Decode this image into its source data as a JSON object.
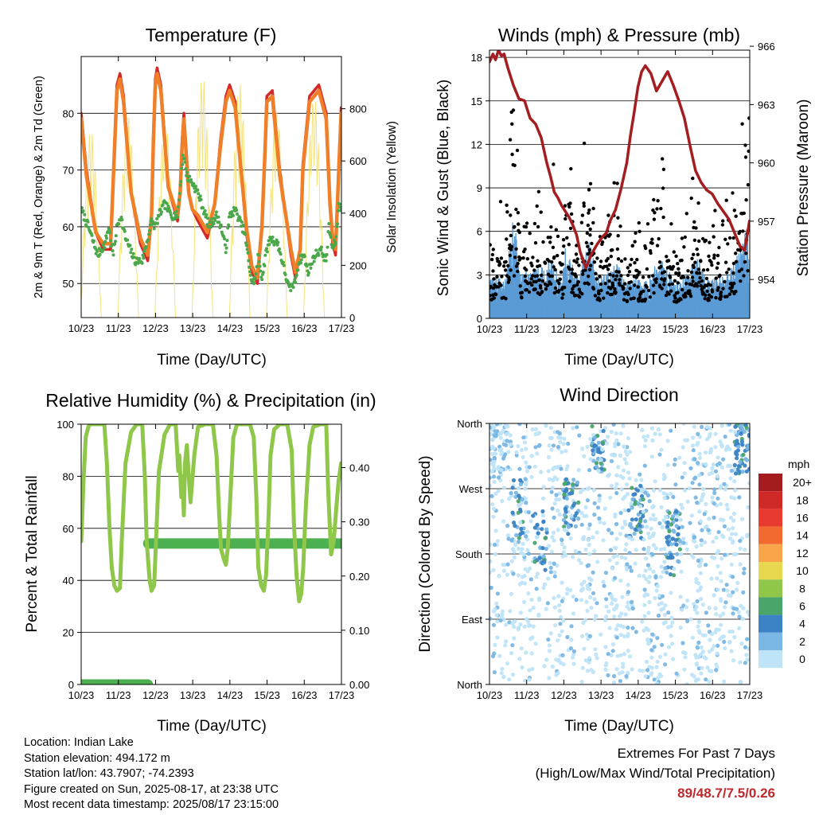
{
  "colors": {
    "temp_2m": "#d62828",
    "temp_9m": "#f07f2a",
    "dewpoint": "#4aa84a",
    "solar": "#f5e27a",
    "wind_sonic": "#5a9bd5",
    "gust": "#000000",
    "pressure": "#a31d21",
    "rh": "#8fc74a",
    "precip": "#4caf50"
  },
  "info": {
    "location": "Location: Indian Lake",
    "elevation": "Station elevation: 494.172 m",
    "latlon": "Station lat/lon: 43.7907; -74.2393",
    "created": "Figure created on Sun, 2025-08-17, at 23:38 UTC",
    "latest": "Most recent data timestamp: 2025/08/17 23:15:00"
  },
  "extremes": {
    "title": "Extremes For Past 7 Days",
    "subtitle": "(High/Low/Max Wind/Total Precipitation)",
    "values": "89/48.7/7.5/0.26"
  },
  "chart_data": [
    {
      "type": "line",
      "title": "Temperature (F)",
      "xlabel": "Time (Day/UTC)",
      "ylabel": "2m & 9m T (Red, Orange) & 2m Td (Green)",
      "y2label": "Solar Insolation (Yellow)",
      "x_ticks": [
        "10/23",
        "11/23",
        "12/23",
        "13/23",
        "14/23",
        "15/23",
        "16/23",
        "17/23"
      ],
      "xlim": [
        10.958,
        17.958
      ],
      "ylim": [
        44,
        90
      ],
      "y_ticks": [
        "50",
        "60",
        "70",
        "80"
      ],
      "y2lim": [
        0,
        1000
      ],
      "y2_ticks": [
        "0",
        "200",
        "400",
        "600",
        "800"
      ],
      "grid": true,
      "series": [
        {
          "key": "t2m",
          "x": [
            10.96,
            11.1,
            11.35,
            11.55,
            11.75,
            11.85,
            11.92,
            12.0,
            12.1,
            12.3,
            12.55,
            12.75,
            12.85,
            12.9,
            12.95,
            13.0,
            13.1,
            13.3,
            13.55,
            13.62,
            13.67,
            13.72,
            13.78,
            13.85,
            13.95,
            14.1,
            14.35,
            14.55,
            14.7,
            14.85,
            14.95,
            15.1,
            15.4,
            15.55,
            15.7,
            15.82,
            15.9,
            15.95,
            16.1,
            16.3,
            16.6,
            16.72,
            16.85,
            16.92,
            17.1,
            17.35,
            17.55,
            17.65,
            17.72,
            17.8,
            17.88,
            17.95
          ],
          "y": [
            80,
            70,
            59,
            56,
            56,
            74,
            85,
            87,
            83,
            66,
            57,
            54,
            62,
            76,
            86,
            88,
            85,
            67,
            61,
            66,
            75,
            80,
            74,
            66,
            63,
            61,
            58,
            64,
            75,
            83,
            85,
            82,
            59,
            52,
            50,
            60,
            74,
            83,
            84,
            70,
            55,
            51,
            56,
            71,
            83,
            85,
            80,
            64,
            57,
            55,
            70,
            81
          ]
        },
        {
          "key": "t9m",
          "x": [
            10.96,
            11.1,
            11.35,
            11.55,
            11.75,
            11.85,
            11.92,
            12.0,
            12.1,
            12.3,
            12.55,
            12.75,
            12.85,
            12.9,
            12.95,
            13.0,
            13.1,
            13.3,
            13.55,
            13.62,
            13.67,
            13.72,
            13.78,
            13.85,
            13.95,
            14.1,
            14.35,
            14.55,
            14.7,
            14.85,
            14.95,
            15.1,
            15.4,
            15.55,
            15.7,
            15.82,
            15.9,
            15.95,
            16.1,
            16.3,
            16.6,
            16.72,
            16.85,
            16.92,
            17.1,
            17.35,
            17.55,
            17.65,
            17.72,
            17.8,
            17.88,
            17.95
          ],
          "y": [
            79,
            69,
            59,
            57,
            57,
            73,
            84,
            86,
            82,
            66,
            58,
            55,
            62,
            75,
            85,
            87,
            84,
            67,
            62,
            66,
            74,
            79,
            73,
            66,
            63,
            62,
            59,
            64,
            74,
            82,
            84,
            81,
            60,
            53,
            51,
            60,
            73,
            82,
            83,
            69,
            56,
            52,
            56,
            70,
            82,
            84,
            79,
            64,
            58,
            56,
            69,
            80
          ]
        },
        {
          "key": "td",
          "x": [
            10.96,
            11.15,
            11.4,
            11.6,
            11.7,
            11.82,
            11.92,
            12.02,
            12.15,
            12.4,
            12.6,
            12.75,
            12.85,
            12.95,
            13.05,
            13.2,
            13.4,
            13.55,
            13.62,
            13.7,
            13.8,
            13.92,
            14.1,
            14.4,
            14.6,
            14.72,
            14.85,
            14.95,
            15.1,
            15.35,
            15.55,
            15.65,
            15.72,
            15.82,
            15.95,
            16.05,
            16.25,
            16.55,
            16.7,
            16.82,
            16.95,
            17.05,
            17.25,
            17.4,
            17.55,
            17.62,
            17.72,
            17.82,
            17.9,
            17.95
          ],
          "y": [
            63,
            60,
            55,
            57,
            60,
            55,
            60,
            62,
            58,
            54,
            54,
            58,
            61,
            60,
            62,
            64,
            62,
            62,
            67,
            73,
            69,
            68,
            66,
            60,
            62,
            60,
            56,
            62,
            63,
            59,
            50,
            51,
            55,
            51,
            56,
            58,
            57,
            49,
            50,
            54,
            55,
            52,
            55,
            56,
            54,
            60,
            56,
            58,
            65,
            62
          ]
        },
        {
          "key": "solar",
          "axis": "y2",
          "days": [
            11,
            12,
            13,
            14,
            15,
            16,
            17
          ],
          "peaks": [
            720,
            780,
            760,
            930,
            900,
            800,
            860
          ]
        }
      ]
    },
    {
      "type": "scatter",
      "title": "Winds (mph) & Pressure (mb)",
      "xlabel": "Time (Day/UTC)",
      "ylabel": "Sonic Wind & Gust (Blue, Black)",
      "y2label": "Station Pressure (Maroon)",
      "x_ticks": [
        "10/23",
        "11/23",
        "12/23",
        "13/23",
        "14/23",
        "15/23",
        "16/23",
        "17/23"
      ],
      "xlim": [
        10.958,
        17.958
      ],
      "ylim": [
        0,
        18.5
      ],
      "y_ticks": [
        "0",
        "3",
        "6",
        "9",
        "12",
        "15",
        "18"
      ],
      "y2lim": [
        952.0,
        965.8
      ],
      "y2_ticks": [
        "954",
        "957",
        "960",
        "963",
        "966"
      ],
      "grid": true,
      "series": [
        {
          "key": "pressure",
          "axis": "y2",
          "x": [
            10.96,
            11.05,
            11.12,
            11.2,
            11.28,
            11.35,
            11.45,
            11.6,
            11.75,
            11.9,
            12.05,
            12.2,
            12.35,
            12.5,
            12.6,
            12.7,
            12.8,
            12.9,
            13.0,
            13.1,
            13.2,
            13.3,
            13.4,
            13.55,
            13.7,
            13.85,
            14.0,
            14.1,
            14.2,
            14.35,
            14.5,
            14.65,
            14.75,
            14.85,
            14.95,
            15.05,
            15.15,
            15.3,
            15.45,
            15.6,
            15.75,
            15.9,
            16.05,
            16.2,
            16.35,
            16.5,
            16.65,
            16.8,
            16.95,
            17.1,
            17.25,
            17.4,
            17.55,
            17.7,
            17.82,
            17.9,
            17.95
          ],
          "y": [
            965.2,
            965.6,
            965.3,
            965.8,
            965.5,
            965.6,
            964.9,
            964.0,
            963.3,
            963.2,
            962.3,
            962.0,
            961.3,
            960.0,
            959.3,
            958.5,
            958.2,
            957.8,
            957.5,
            957.2,
            956.8,
            956.3,
            955.4,
            954.6,
            955.3,
            955.8,
            956.2,
            956.4,
            957.0,
            957.6,
            958.7,
            960.0,
            961.4,
            962.6,
            963.9,
            964.7,
            965.0,
            964.6,
            963.7,
            964.2,
            964.7,
            964.0,
            963.2,
            962.3,
            960.9,
            959.6,
            959.0,
            958.6,
            958.4,
            957.9,
            957.5,
            957.1,
            956.4,
            955.7,
            955.5,
            956.4,
            957.0
          ]
        }
      ],
      "wind_activity": [
        [
          11.4,
          1.0
        ],
        [
          11.6,
          2.6
        ],
        [
          11.8,
          1.1
        ],
        [
          12.4,
          1.3
        ],
        [
          12.65,
          1.6
        ],
        [
          12.9,
          0.8
        ],
        [
          13.0,
          1.8
        ],
        [
          13.35,
          1.0
        ],
        [
          13.65,
          2.0
        ],
        [
          13.85,
          1.0
        ],
        [
          14.1,
          1.1
        ],
        [
          14.4,
          1.4
        ],
        [
          14.65,
          0.9
        ],
        [
          14.9,
          1.0
        ],
        [
          15.25,
          0.9
        ],
        [
          15.45,
          1.5
        ],
        [
          15.65,
          1.4
        ],
        [
          15.95,
          0.9
        ],
        [
          16.35,
          1.2
        ],
        [
          16.55,
          1.6
        ],
        [
          16.8,
          1.0
        ],
        [
          17.1,
          1.0
        ],
        [
          17.5,
          1.3
        ],
        [
          17.85,
          2.2
        ]
      ]
    },
    {
      "type": "line",
      "title": "Relative Humidity (%) & Precipitation (in)",
      "xlabel": "Time (Day/UTC)",
      "ylabel": "Percent & Total Rainfall",
      "x_ticks": [
        "10/23",
        "11/23",
        "12/23",
        "13/23",
        "14/23",
        "15/23",
        "16/23",
        "17/23"
      ],
      "xlim": [
        10.958,
        17.958
      ],
      "ylim": [
        0,
        100
      ],
      "y_ticks": [
        "0",
        "20",
        "40",
        "60",
        "80",
        "100"
      ],
      "y2lim": [
        0,
        0.48
      ],
      "y2_ticks": [
        "0.00",
        "0.10",
        "0.20",
        "0.30",
        "0.40"
      ],
      "grid": true,
      "series": [
        {
          "key": "rh",
          "x": [
            10.96,
            11.02,
            11.08,
            11.15,
            11.2,
            11.3,
            11.45,
            11.58,
            11.65,
            11.72,
            11.78,
            11.85,
            11.92,
            12.0,
            12.05,
            12.15,
            12.3,
            12.45,
            12.6,
            12.67,
            12.72,
            12.8,
            12.85,
            12.92,
            12.97,
            13.05,
            13.2,
            13.35,
            13.5,
            13.57,
            13.6,
            13.65,
            13.68,
            13.72,
            13.75,
            13.8,
            13.85,
            13.9,
            14.0,
            14.1,
            14.3,
            14.5,
            14.6,
            14.67,
            14.72,
            14.8,
            14.85,
            14.9,
            14.97,
            15.05,
            15.15,
            15.3,
            15.5,
            15.6,
            15.67,
            15.72,
            15.8,
            15.87,
            15.93,
            16.0,
            16.05,
            16.15,
            16.3,
            16.5,
            16.62,
            16.68,
            16.75,
            16.82,
            16.88,
            16.93,
            17.0,
            17.1,
            17.2,
            17.4,
            17.55,
            17.6,
            17.68,
            17.75,
            17.82,
            17.88,
            17.95
          ],
          "y": [
            55,
            78,
            95,
            99,
            100,
            100,
            100,
            100,
            85,
            60,
            45,
            38,
            36,
            37,
            55,
            85,
            97,
            100,
            100,
            80,
            55,
            40,
            36,
            38,
            55,
            82,
            96,
            100,
            100,
            82,
            88,
            72,
            80,
            65,
            85,
            92,
            80,
            70,
            88,
            99,
            100,
            100,
            88,
            65,
            52,
            48,
            46,
            52,
            72,
            95,
            100,
            100,
            100,
            95,
            72,
            45,
            38,
            36,
            42,
            65,
            88,
            98,
            100,
            100,
            90,
            62,
            42,
            32,
            35,
            45,
            68,
            92,
            99,
            100,
            100,
            75,
            50,
            55,
            68,
            78,
            85
          ]
        },
        {
          "key": "precip",
          "axis": "y2",
          "x": [
            10.96,
            12.75,
            12.76,
            17.95
          ],
          "y": [
            0.0,
            0.0,
            0.26,
            0.26
          ]
        }
      ]
    },
    {
      "type": "scatter",
      "title": "Wind Direction",
      "xlabel": "Time (Day/UTC)",
      "ylabel": "Direction (Colored By Speed)",
      "x_ticks": [
        "10/23",
        "11/23",
        "12/23",
        "13/23",
        "14/23",
        "15/23",
        "16/23",
        "17/23"
      ],
      "xlim": [
        10.958,
        17.958
      ],
      "ylim": [
        0,
        360
      ],
      "y_ticks": [
        "North",
        "East",
        "South",
        "West",
        "North"
      ],
      "grid": true,
      "colorbar": {
        "unit": "mph",
        "labels": [
          "20+",
          "18",
          "16",
          "14",
          "12",
          "10",
          "8",
          "6",
          "4",
          "2",
          "0"
        ],
        "colors": [
          "#a51c1f",
          "#cf2a27",
          "#e83a2e",
          "#f26a30",
          "#f9a54a",
          "#e8d84f",
          "#8fc74a",
          "#4aa56a",
          "#3b83c4",
          "#7ab7e4",
          "#bfe4f8"
        ]
      },
      "direction_bands": [
        {
          "center": 11.12,
          "width": 0.42,
          "dirs": "N-NW",
          "speed": "low"
        },
        {
          "center": 11.72,
          "width": 0.14,
          "dirs": "SW-W",
          "speed": "moderate"
        },
        {
          "center": 12.33,
          "width": 0.2,
          "dirs": "S-SW",
          "speed": "moderate"
        },
        {
          "center": 13.15,
          "width": 0.2,
          "dirs": "SW-W",
          "speed": "moderate"
        },
        {
          "center": 13.88,
          "width": 0.18,
          "dirs": "N-NW",
          "speed": "moderate"
        },
        {
          "center": 14.9,
          "width": 0.2,
          "dirs": "SW-W",
          "speed": "moderate"
        },
        {
          "center": 15.9,
          "width": 0.2,
          "dirs": "S-SW",
          "speed": "moderate"
        },
        {
          "center": 17.75,
          "width": 0.2,
          "dirs": "N-NW",
          "speed": "moderate"
        }
      ]
    }
  ]
}
